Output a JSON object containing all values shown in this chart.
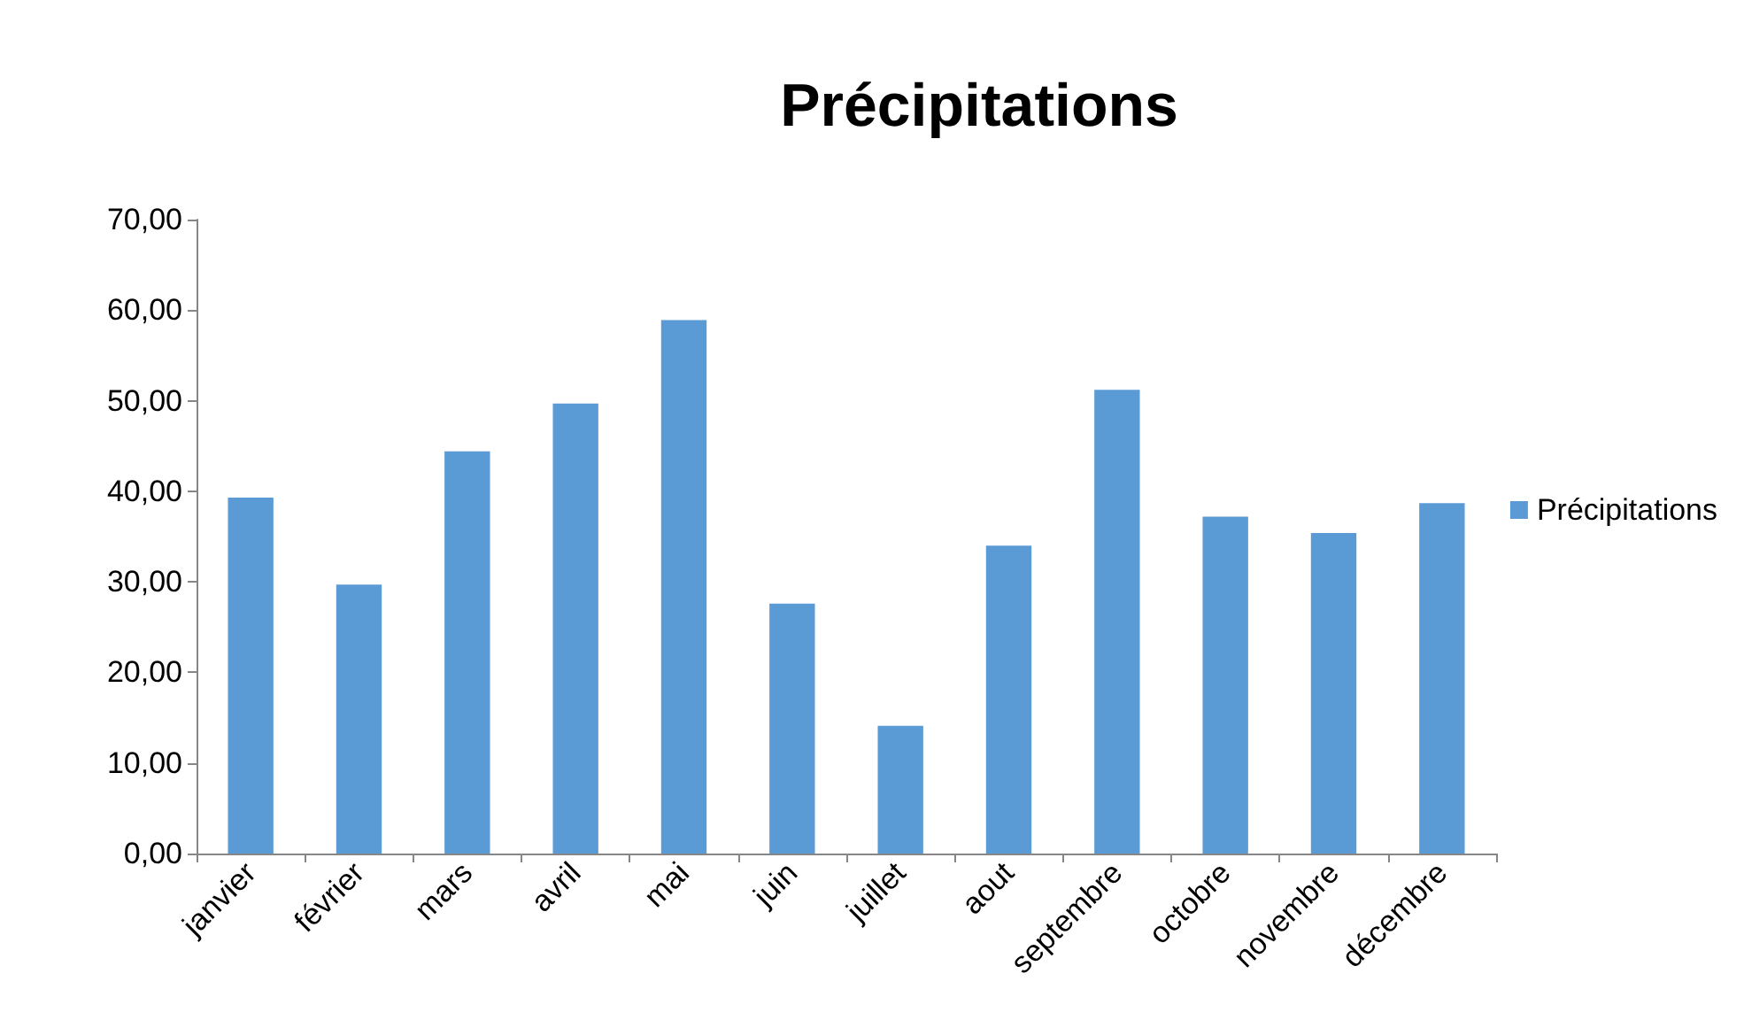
{
  "chart_data": {
    "type": "bar",
    "title": "Précipitations",
    "categories": [
      "janvier",
      "février",
      "mars",
      "avril",
      "mai",
      "juin",
      "juillet",
      "aout",
      "septembre",
      "octobre",
      "novembre",
      "décembre"
    ],
    "series": [
      {
        "name": "Précipitations",
        "color": "#5b9bd5",
        "values": [
          39.3,
          29.7,
          44.4,
          49.7,
          58.9,
          27.6,
          14.1,
          34.0,
          51.2,
          37.2,
          35.4,
          38.7
        ]
      }
    ],
    "ylim": [
      0,
      70
    ],
    "yticks": [
      {
        "value": 0,
        "label": "0,00"
      },
      {
        "value": 10,
        "label": "10,00"
      },
      {
        "value": 20,
        "label": "20,00"
      },
      {
        "value": 30,
        "label": "30,00"
      },
      {
        "value": 40,
        "label": "40,00"
      },
      {
        "value": 50,
        "label": "50,00"
      },
      {
        "value": 60,
        "label": "60,00"
      },
      {
        "value": 70,
        "label": "70,00"
      }
    ],
    "grid": false,
    "legend": "right"
  }
}
